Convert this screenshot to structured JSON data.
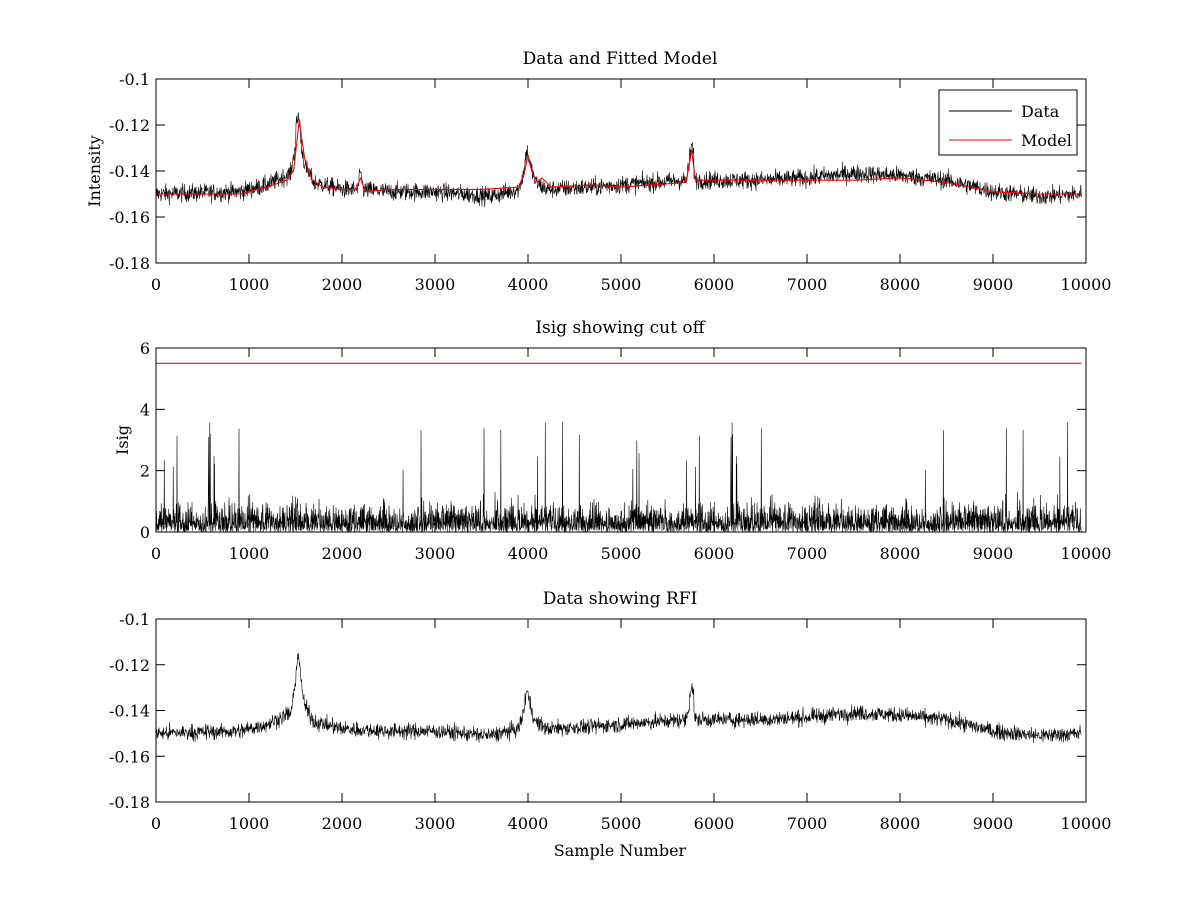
{
  "chart_data": [
    {
      "type": "line",
      "title": "Data and Fitted Model",
      "xlabel": "",
      "ylabel": "Intensity",
      "xlim": [
        0,
        10000
      ],
      "ylim": [
        -0.18,
        -0.1
      ],
      "xticks": [
        0,
        1000,
        2000,
        3000,
        4000,
        5000,
        6000,
        7000,
        8000,
        9000,
        10000
      ],
      "yticks": [
        -0.18,
        -0.16,
        -0.14,
        -0.12,
        -0.1
      ],
      "ytick_labels": [
        "-0.18",
        "-0.16",
        "-0.14",
        "-0.12",
        "-0.1"
      ],
      "grid": false,
      "legend": {
        "placement": "top-right",
        "entries": [
          "Data",
          "Model"
        ]
      },
      "series": [
        {
          "name": "Data",
          "color": "#000000",
          "noise_sigma": 0.0038,
          "x": [
            0,
            900,
            1200,
            1450,
            1530,
            1600,
            1700,
            2000,
            2200,
            2500,
            3000,
            3600,
            3900,
            4000,
            4080,
            4200,
            4700,
            5000,
            5700,
            5760,
            5800,
            6500,
            7000,
            7500,
            8000,
            8500,
            9000,
            9500,
            9950
          ],
          "y": [
            -0.15,
            -0.149,
            -0.146,
            -0.141,
            -0.121,
            -0.138,
            -0.145,
            -0.148,
            -0.148,
            -0.149,
            -0.149,
            -0.151,
            -0.148,
            -0.134,
            -0.145,
            -0.148,
            -0.147,
            -0.146,
            -0.144,
            -0.133,
            -0.144,
            -0.144,
            -0.143,
            -0.141,
            -0.142,
            -0.144,
            -0.149,
            -0.151,
            -0.15
          ],
          "spikes": [
            {
              "x": 1530,
              "y": -0.116
            },
            {
              "x": 2200,
              "y": -0.141
            },
            {
              "x": 3990,
              "y": -0.131
            },
            {
              "x": 5760,
              "y": -0.129
            }
          ]
        },
        {
          "name": "Model",
          "color": "#ff0000",
          "x": [
            0,
            900,
            1000,
            1200,
            1400,
            1480,
            1540,
            1600,
            1680,
            1800,
            2000,
            2150,
            2200,
            2250,
            2500,
            3000,
            3500,
            3900,
            3960,
            4000,
            4040,
            4100,
            4150,
            4250,
            4700,
            5000,
            5700,
            5760,
            5800,
            6500,
            7000,
            7500,
            8000,
            8500,
            9000,
            9500,
            9950
          ],
          "y": [
            -0.15,
            -0.15,
            -0.149,
            -0.147,
            -0.144,
            -0.14,
            -0.118,
            -0.135,
            -0.144,
            -0.147,
            -0.148,
            -0.148,
            -0.143,
            -0.149,
            -0.148,
            -0.148,
            -0.148,
            -0.147,
            -0.141,
            -0.133,
            -0.14,
            -0.145,
            -0.143,
            -0.147,
            -0.146,
            -0.147,
            -0.145,
            -0.131,
            -0.144,
            -0.144,
            -0.144,
            -0.144,
            -0.143,
            -0.145,
            -0.149,
            -0.15,
            -0.15
          ]
        }
      ]
    },
    {
      "type": "line",
      "title": "Isig showing cut off",
      "xlabel": "",
      "ylabel": "Isig",
      "xlim": [
        0,
        10000
      ],
      "ylim": [
        0,
        6
      ],
      "xticks": [
        0,
        1000,
        2000,
        3000,
        4000,
        5000,
        6000,
        7000,
        8000,
        9000,
        10000
      ],
      "yticks": [
        0,
        2,
        4,
        6
      ],
      "ytick_labels": [
        "0",
        "2",
        "4",
        "6"
      ],
      "grid": false,
      "series": [
        {
          "color": "#000000",
          "typical_max": 3.5,
          "min": 0
        },
        {
          "color": "#ff0000",
          "x": [
            0,
            9950
          ],
          "y": [
            5.5,
            5.5
          ]
        }
      ]
    },
    {
      "type": "line",
      "title": "Data showing RFI",
      "xlabel": "Sample Number",
      "ylabel": "",
      "xlim": [
        0,
        10000
      ],
      "ylim": [
        -0.18,
        -0.1
      ],
      "xticks": [
        0,
        1000,
        2000,
        3000,
        4000,
        5000,
        6000,
        7000,
        8000,
        9000,
        10000
      ],
      "yticks": [
        -0.18,
        -0.16,
        -0.14,
        -0.12,
        -0.1
      ],
      "ytick_labels": [
        "-0.18",
        "-0.16",
        "-0.14",
        "-0.12",
        "-0.1"
      ],
      "grid": false,
      "series": [
        {
          "color": "#000000",
          "noise_sigma": 0.0033,
          "x": [
            0,
            900,
            1200,
            1450,
            1530,
            1600,
            1700,
            2000,
            2500,
            3000,
            3600,
            3900,
            4000,
            4080,
            4200,
            4700,
            5000,
            5700,
            5760,
            5800,
            6500,
            7000,
            7500,
            8000,
            8500,
            9000,
            9500,
            9950
          ],
          "y": [
            -0.15,
            -0.149,
            -0.146,
            -0.141,
            -0.121,
            -0.138,
            -0.145,
            -0.148,
            -0.149,
            -0.149,
            -0.151,
            -0.148,
            -0.134,
            -0.145,
            -0.148,
            -0.147,
            -0.146,
            -0.144,
            -0.133,
            -0.144,
            -0.144,
            -0.143,
            -0.141,
            -0.142,
            -0.144,
            -0.149,
            -0.151,
            -0.15
          ],
          "spikes": [
            {
              "x": 1530,
              "y": -0.116
            },
            {
              "x": 3990,
              "y": -0.131
            },
            {
              "x": 5760,
              "y": -0.129
            }
          ]
        }
      ]
    }
  ]
}
